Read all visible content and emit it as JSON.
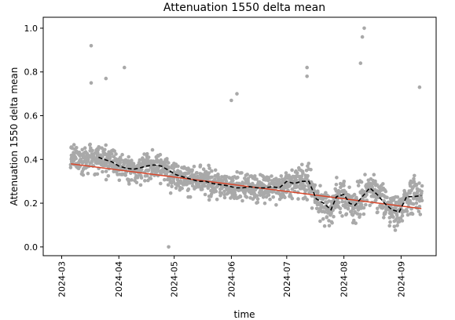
{
  "chart_data": {
    "type": "scatter",
    "title": "Attenuation 1550 delta mean",
    "xlabel": "time",
    "ylabel": "Attenuation 1550 delta mean",
    "xlim": [
      "2024-02-20",
      "2024-09-20"
    ],
    "ylim": [
      -0.04,
      1.05
    ],
    "x_ticks": [
      "2024-03-01",
      "2024-04-01",
      "2024-05-01",
      "2024-06-01",
      "2024-07-01",
      "2024-08-01",
      "2024-09-01"
    ],
    "x_tick_labels": [
      "2024-03",
      "2024-04",
      "2024-05",
      "2024-06",
      "2024-07",
      "2024-08",
      "2024-09"
    ],
    "y_ticks": [
      0.0,
      0.2,
      0.4,
      0.6,
      0.8,
      1.0
    ],
    "y_tick_labels": [
      "0.0",
      "0.2",
      "0.4",
      "0.6",
      "0.8",
      "1.0"
    ],
    "grid": false,
    "colors": {
      "points": "#a9a9a9",
      "trend": "#d9462a",
      "rolling": "#000000"
    },
    "series": [
      {
        "kind": "points",
        "x_range": [
          "2024-03-06",
          "2024-09-12"
        ],
        "approx_count": 1600,
        "outliers": [
          {
            "x": "2024-03-17",
            "y": 0.92
          },
          {
            "x": "2024-03-17",
            "y": 0.75
          },
          {
            "x": "2024-03-25",
            "y": 0.77
          },
          {
            "x": "2024-04-04",
            "y": 0.82
          },
          {
            "x": "2024-04-28",
            "y": 0.0
          },
          {
            "x": "2024-06-01",
            "y": 0.67
          },
          {
            "x": "2024-06-04",
            "y": 0.7
          },
          {
            "x": "2024-07-12",
            "y": 0.78
          },
          {
            "x": "2024-07-12",
            "y": 0.82
          },
          {
            "x": "2024-08-10",
            "y": 0.84
          },
          {
            "x": "2024-08-11",
            "y": 0.96
          },
          {
            "x": "2024-08-12",
            "y": 1.0
          },
          {
            "x": "2024-09-11",
            "y": 0.73
          }
        ]
      },
      {
        "kind": "trend",
        "x": [
          "2024-03-06",
          "2024-09-12"
        ],
        "y": [
          0.38,
          0.175
        ]
      },
      {
        "kind": "rolling",
        "x": [
          "2024-03-21",
          "2024-03-24",
          "2024-03-28",
          "2024-04-01",
          "2024-04-05",
          "2024-04-09",
          "2024-04-12",
          "2024-04-16",
          "2024-04-20",
          "2024-04-24",
          "2024-04-28",
          "2024-05-02",
          "2024-05-06",
          "2024-05-10",
          "2024-05-14",
          "2024-05-18",
          "2024-05-22",
          "2024-05-26",
          "2024-05-30",
          "2024-06-03",
          "2024-06-07",
          "2024-06-11",
          "2024-06-15",
          "2024-06-19",
          "2024-06-23",
          "2024-06-27",
          "2024-07-01",
          "2024-07-05",
          "2024-07-09",
          "2024-07-13",
          "2024-07-17",
          "2024-07-21",
          "2024-07-25",
          "2024-07-28",
          "2024-08-01",
          "2024-08-04",
          "2024-08-07",
          "2024-08-11",
          "2024-08-15",
          "2024-08-19",
          "2024-08-23",
          "2024-08-27",
          "2024-08-31",
          "2024-09-04",
          "2024-09-08",
          "2024-09-12"
        ],
        "y": [
          0.41,
          0.4,
          0.39,
          0.37,
          0.36,
          0.355,
          0.36,
          0.37,
          0.375,
          0.37,
          0.35,
          0.33,
          0.32,
          0.31,
          0.3,
          0.3,
          0.29,
          0.285,
          0.28,
          0.27,
          0.27,
          0.275,
          0.27,
          0.27,
          0.275,
          0.27,
          0.3,
          0.29,
          0.3,
          0.3,
          0.22,
          0.2,
          0.17,
          0.23,
          0.24,
          0.2,
          0.19,
          0.23,
          0.27,
          0.24,
          0.2,
          0.17,
          0.16,
          0.23,
          0.23,
          0.235
        ]
      }
    ]
  }
}
